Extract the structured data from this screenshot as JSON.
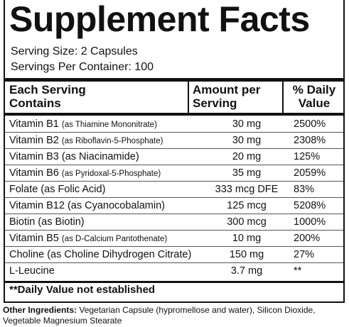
{
  "title": "Supplement Facts",
  "serving_size": "Serving Size: 2 Capsules",
  "servings_per_container": "Servings Per Container: 100",
  "header": {
    "name": "Each Serving Contains",
    "amount": "Amount per Serving",
    "dv": "% Daily Value"
  },
  "rows": [
    {
      "name": "Vitamin B1",
      "note": "(as Thiamine Mononitrate)",
      "amount": "30 mg",
      "dv": "2500%"
    },
    {
      "name": "Vitamin B2",
      "note": "(as Riboflavin-5-Phosphate)",
      "amount": "30 mg",
      "dv": "2308%"
    },
    {
      "name": "Vitamin B3",
      "note": "(as Niacinamide)",
      "amount": "20 mg",
      "dv": "125%"
    },
    {
      "name": "Vitamin B6",
      "note": "(as Pyridoxal-5-Phosphate)",
      "amount": "35 mg",
      "dv": "2059%"
    },
    {
      "name": "Folate",
      "note": "(as Folic Acid)",
      "amount": "333 mcg DFE",
      "dv": "83%"
    },
    {
      "name": "Vitamin B12",
      "note": "(as Cyanocobalamin)",
      "amount": "125 mcg",
      "dv": "5208%"
    },
    {
      "name": "Biotin",
      "note": "(as Biotin)",
      "amount": "300 mcg",
      "dv": "1000%"
    },
    {
      "name": "Vitamin B5",
      "note": "(as D-Calcium Pantothenate)",
      "amount": "10 mg",
      "dv": "200%"
    },
    {
      "name": "Choline",
      "note": "(as Choline Dihydrogen Citrate)",
      "amount": "150 mg",
      "dv": "27%"
    },
    {
      "name": "L-Leucine",
      "note": null,
      "amount": "3.7 mg",
      "dv": "**"
    }
  ],
  "footnote": "**Daily Value not established",
  "other_ingredients": {
    "label": "Other Ingredients:",
    "text": "Vegetarian Capsule (hypromellose and water), Silicon Dioxide, Vegetable Magnesium Stearate"
  }
}
